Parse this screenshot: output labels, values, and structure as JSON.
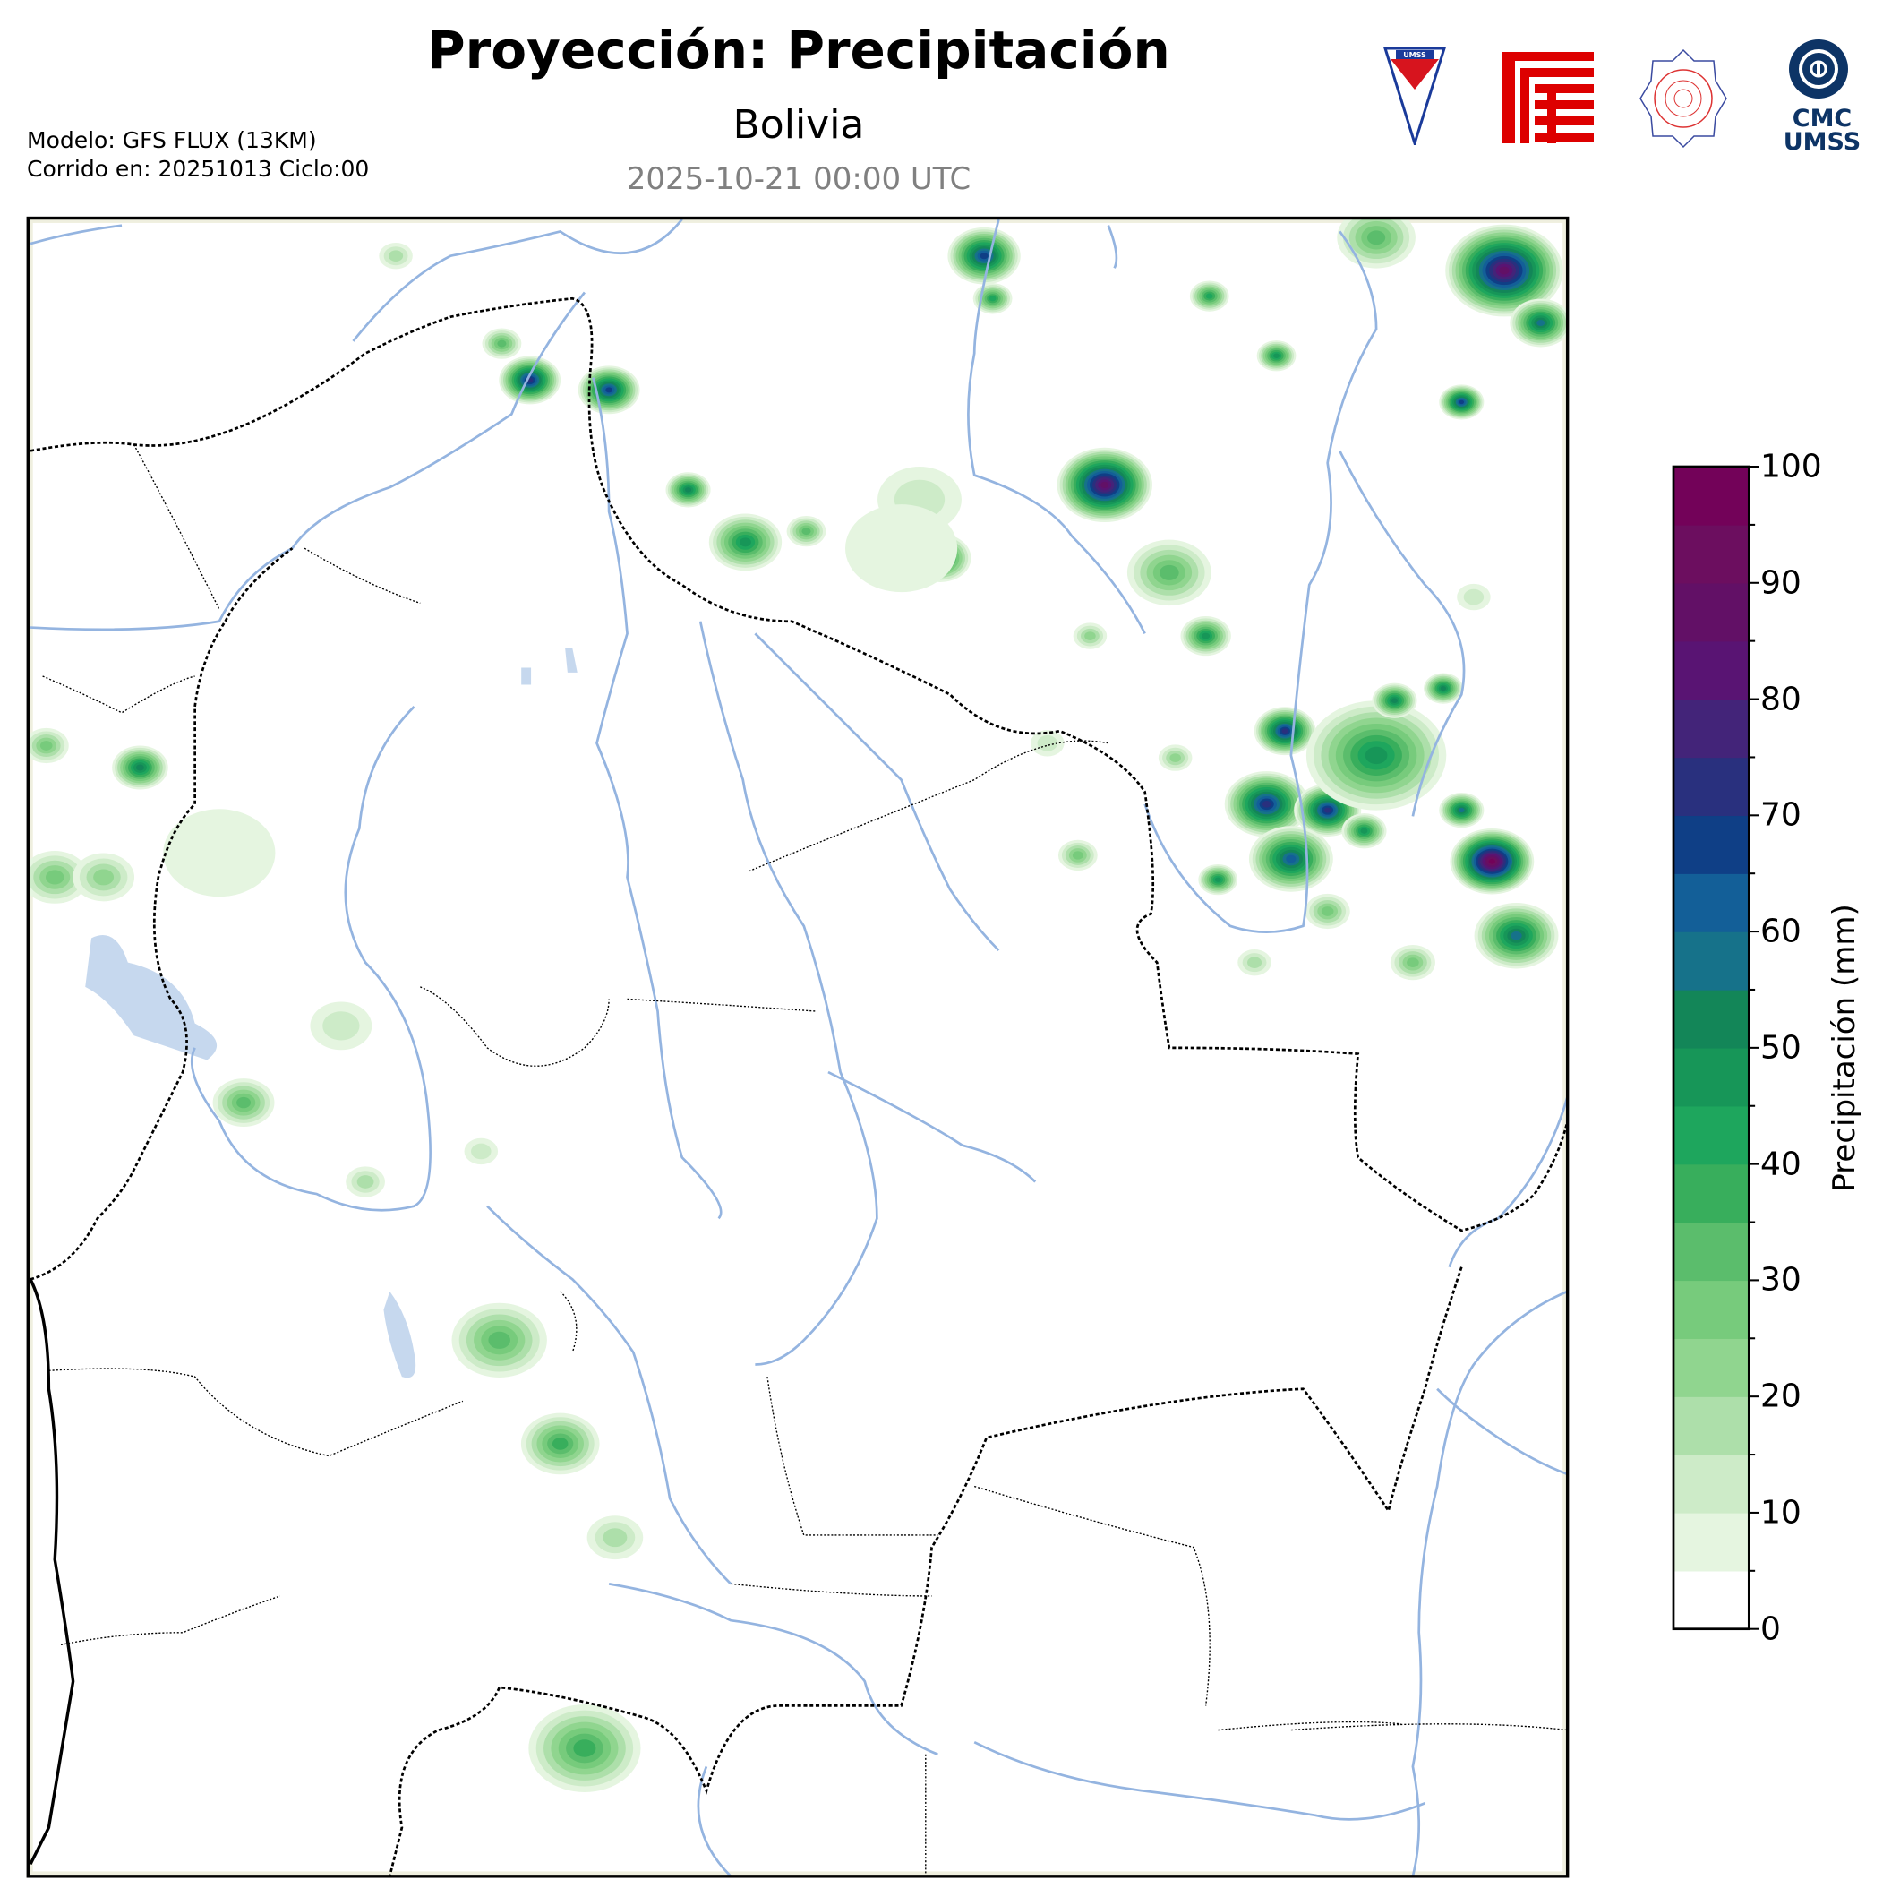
{
  "header": {
    "title": "Proyección: Precipitación",
    "subtitle": "Bolivia",
    "valid_time": "2025-10-21 00:00 UTC",
    "model": "Modelo: GFS FLUX (13KM)",
    "run": "Corrido en: 20251013 Ciclo:00"
  },
  "logos": [
    {
      "name": "umss-pennant-logo",
      "text": "UMSS"
    },
    {
      "name": "fcyt-logo"
    },
    {
      "name": "departamento-de-fisica-seal"
    },
    {
      "name": "cmc-umss-logo",
      "text": "CMC UMSS"
    }
  ],
  "colorbar": {
    "label": "Precipitación (mm)",
    "min": 0,
    "max": 100,
    "step": 5,
    "tick_labels": [
      "0",
      "10",
      "20",
      "30",
      "40",
      "50",
      "60",
      "70",
      "80",
      "90",
      "100"
    ],
    "colors": [
      "#ffffff",
      "#e5f5e0",
      "#cdebc8",
      "#addfaa",
      "#90d58f",
      "#77cb7c",
      "#5bbd6c",
      "#38ae5c",
      "#1ea65d",
      "#179658",
      "#138658",
      "#16728a",
      "#135f98",
      "#0f3f86",
      "#29307e",
      "#432479",
      "#591473",
      "#621066",
      "#6c0e5f",
      "#730259"
    ]
  },
  "map": {
    "region": "Bolivia",
    "river_color": "#94b4e0",
    "lake_color": "#c6d8ee",
    "border_color": "#000000"
  }
}
